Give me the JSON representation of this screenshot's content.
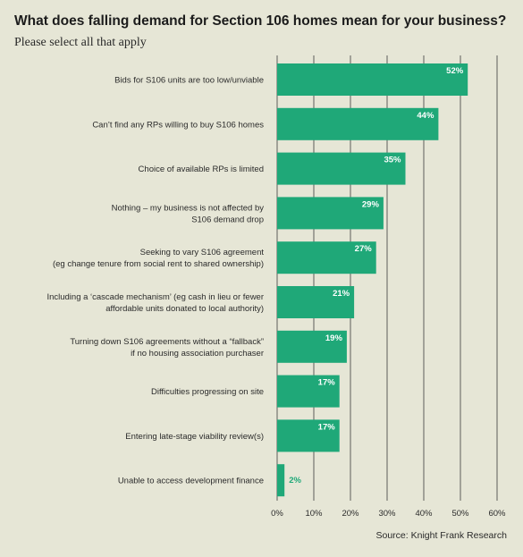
{
  "chart_data": {
    "type": "bar",
    "orientation": "horizontal",
    "title": "What does falling demand for Section 106 homes mean for your business?",
    "subtitle": "Please select all that apply",
    "source": "Source: Knight Frank Research",
    "categories": [
      [
        "Bids for S106 units are too low/unviable"
      ],
      [
        "Can’t find any RPs willing to buy S106 homes"
      ],
      [
        "Choice of available RPs is limited"
      ],
      [
        "Nothing – my business is not affected by",
        "S106 demand drop"
      ],
      [
        "Seeking to vary S106 agreement",
        "(eg change tenure from social rent to shared ownership)"
      ],
      [
        "Including a ‘cascade mechanism’ (eg cash in lieu or fewer",
        "affordable units donated to local authority)"
      ],
      [
        "Turning down S106 agreements without a “fallback”",
        "if no housing association purchaser"
      ],
      [
        "Difficulties progressing on site"
      ],
      [
        "Entering late-stage viability review(s)"
      ],
      [
        "Unable to access development finance"
      ]
    ],
    "values": [
      52,
      44,
      35,
      29,
      27,
      21,
      19,
      17,
      17,
      2
    ],
    "value_labels": [
      "52%",
      "44%",
      "35%",
      "29%",
      "27%",
      "21%",
      "19%",
      "17%",
      "17%",
      "2%"
    ],
    "xticks": [
      "0%",
      "10%",
      "20%",
      "30%",
      "40%",
      "50%",
      "60%"
    ],
    "xlim": [
      0,
      60
    ],
    "grid": true,
    "colors": {
      "bar": "#1fa878",
      "background": "#e6e6d6",
      "gridline": "#3a3a3a",
      "label_inside": "#ffffff",
      "label_outside": "#1fa878"
    }
  }
}
